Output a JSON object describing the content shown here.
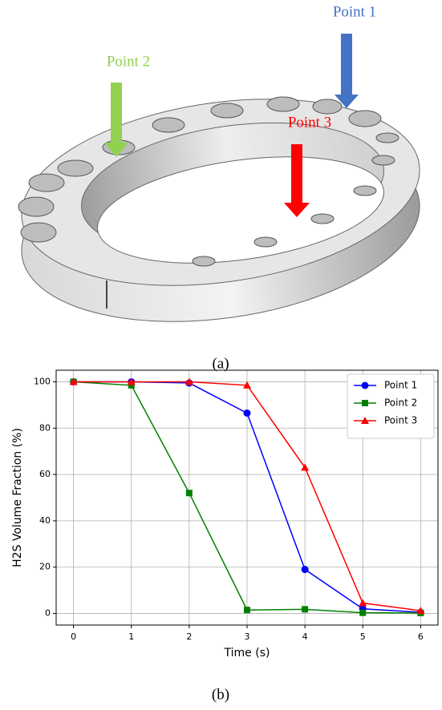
{
  "illustration": {
    "labels": [
      "Point 1",
      "Point 2",
      "Point 3"
    ],
    "caption": "(a)"
  },
  "chart_data": {
    "type": "line",
    "x": [
      0,
      1,
      2,
      3,
      4,
      5,
      6
    ],
    "series": [
      {
        "name": "Point 1",
        "color": "#0000ff",
        "marker": "circle",
        "values": [
          100,
          100,
          99.5,
          86.5,
          19,
          2,
          0.5
        ]
      },
      {
        "name": "Point 2",
        "color": "#008000",
        "marker": "square",
        "values": [
          100,
          98.5,
          52,
          1.5,
          1.8,
          0.3,
          0.2
        ]
      },
      {
        "name": "Point 3",
        "color": "#ff0000",
        "marker": "triangle",
        "values": [
          100,
          100,
          100,
          98.5,
          63,
          4.5,
          1.2
        ]
      }
    ],
    "x_label": "Time (s)",
    "y_label": "H2S Volume Fraction (%)",
    "xlim": [
      -0.3,
      6.3
    ],
    "ylim": [
      -5,
      105
    ],
    "xticks": [
      0,
      1,
      2,
      3,
      4,
      5,
      6
    ],
    "yticks": [
      0,
      20,
      40,
      60,
      80,
      100
    ],
    "grid": true,
    "legend": "upper-right"
  },
  "chart_caption": "(b)"
}
